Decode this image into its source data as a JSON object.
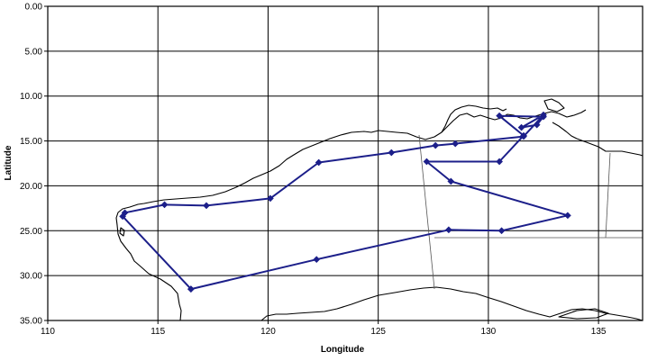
{
  "chart_data": {
    "type": "line",
    "title": "",
    "xlabel": "Longitude",
    "ylabel": "Latitude",
    "xlim": [
      110,
      137
    ],
    "ylim": [
      0,
      35
    ],
    "y_axis_inverted": true,
    "grid": true,
    "legend": "none",
    "x_ticks": [
      110,
      115,
      120,
      125,
      130,
      135
    ],
    "x_tick_labels": [
      "110",
      "115",
      "120",
      "125",
      "130",
      "135"
    ],
    "y_ticks": [
      0,
      5,
      10,
      15,
      20,
      25,
      30,
      35
    ],
    "y_tick_labels": [
      "0.00",
      "5.00",
      "10.00",
      "15.00",
      "20.00",
      "25.00",
      "30.00",
      "35.00"
    ],
    "series": [
      {
        "color": "#1c1f8a",
        "marker": "diamond",
        "x": [
          116.5,
          122.2,
          128.2,
          130.6,
          133.6,
          128.3,
          127.2,
          130.5,
          131.6,
          130.5,
          132.5,
          132.2,
          131.5,
          132.5,
          131.6,
          128.5,
          127.6,
          125.6,
          122.3,
          120.1,
          117.2,
          115.3,
          113.5,
          113.4,
          116.5
        ],
        "y": [
          31.5,
          28.2,
          24.9,
          25.0,
          23.3,
          19.5,
          17.3,
          17.3,
          14.4,
          12.2,
          12.3,
          13.2,
          13.5,
          12.1,
          14.5,
          15.3,
          15.5,
          16.3,
          17.4,
          21.4,
          22.2,
          22.1,
          23.0,
          23.4,
          31.5
        ]
      }
    ],
    "background_map": "coastline-and-state-borders"
  }
}
